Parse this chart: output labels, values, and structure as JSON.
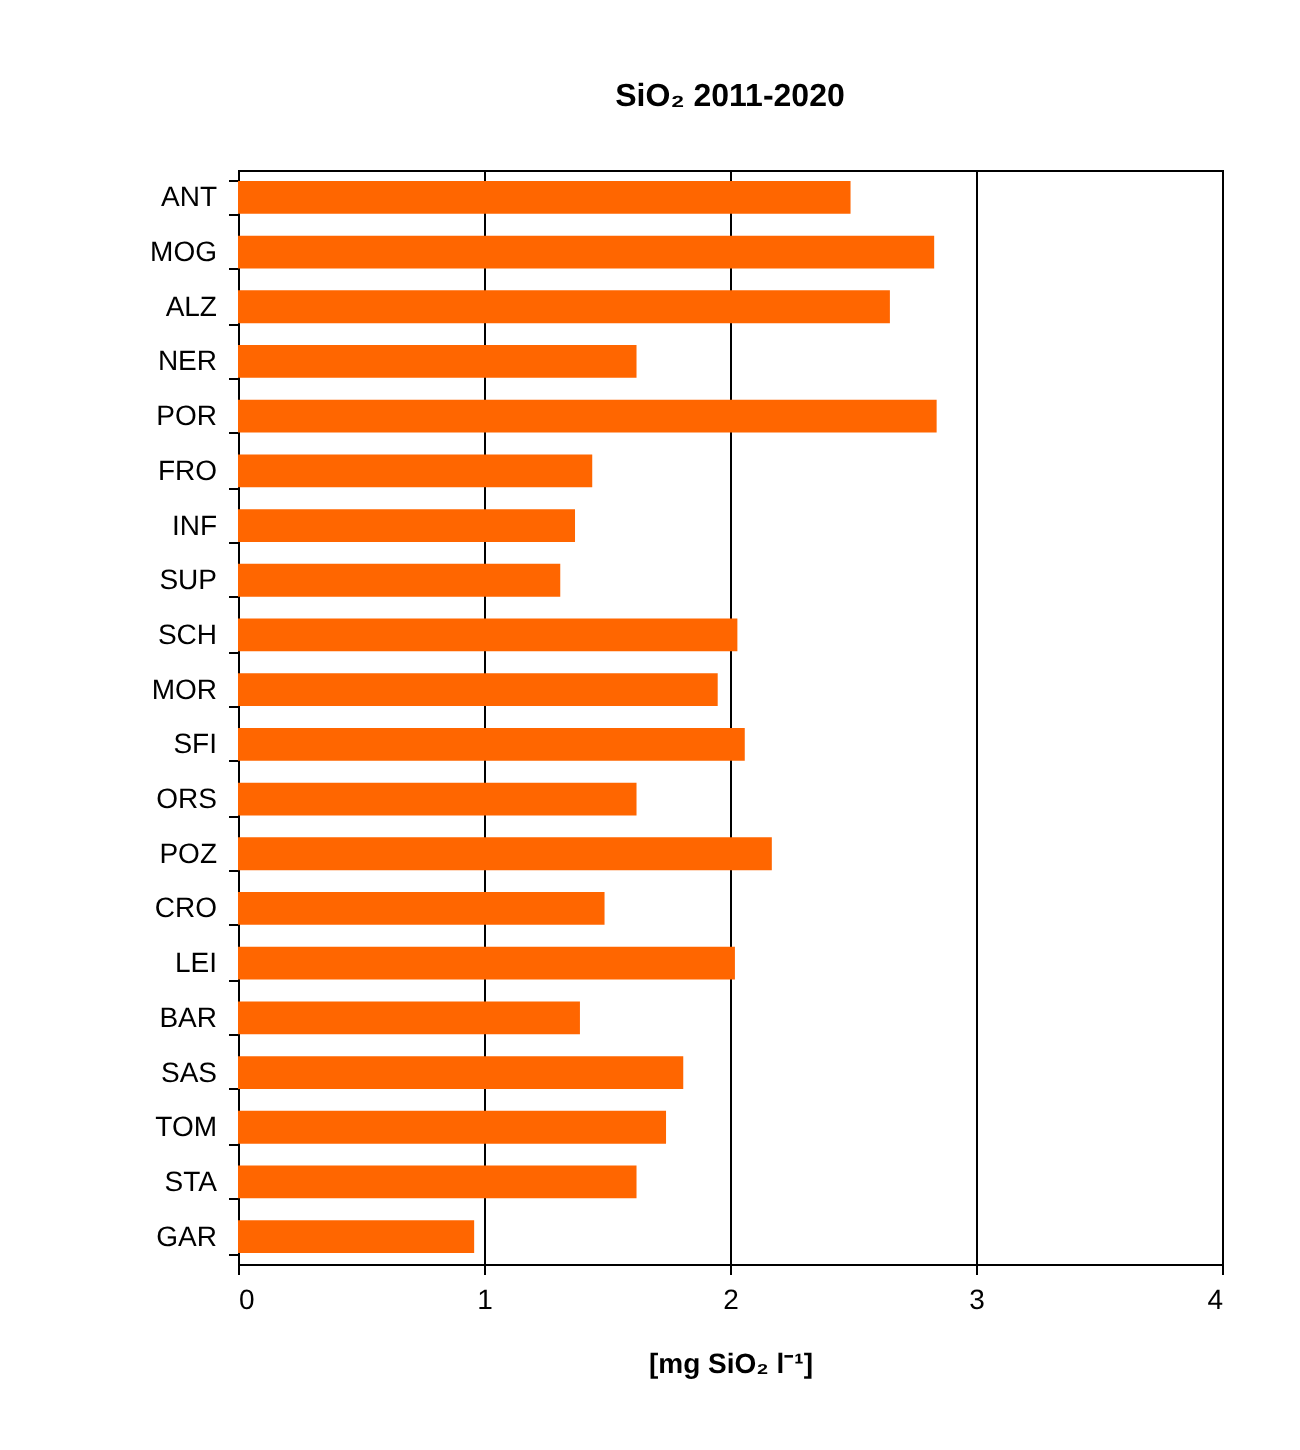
{
  "chart_data": {
    "type": "bar",
    "orientation": "horizontal",
    "title": "SiO₂ 2011-2020",
    "xlabel": "[mg SiO₂ l⁻¹]",
    "categories": [
      "ANT",
      "MOG",
      "ALZ",
      "NER",
      "POR",
      "FRO",
      "INF",
      "SUP",
      "SCH",
      "MOR",
      "SFI",
      "ORS",
      "POZ",
      "CRO",
      "LEI",
      "BAR",
      "SAS",
      "TOM",
      "STA",
      "GAR"
    ],
    "values": [
      2.49,
      2.83,
      2.65,
      1.62,
      2.84,
      1.44,
      1.37,
      1.31,
      2.03,
      1.95,
      2.06,
      1.62,
      2.17,
      1.49,
      2.02,
      1.39,
      1.81,
      1.74,
      1.62,
      0.96
    ],
    "color": "#ff6600",
    "xlim": [
      0,
      4
    ],
    "xticks": [
      0,
      1,
      2,
      3,
      4
    ],
    "grid": "x"
  }
}
